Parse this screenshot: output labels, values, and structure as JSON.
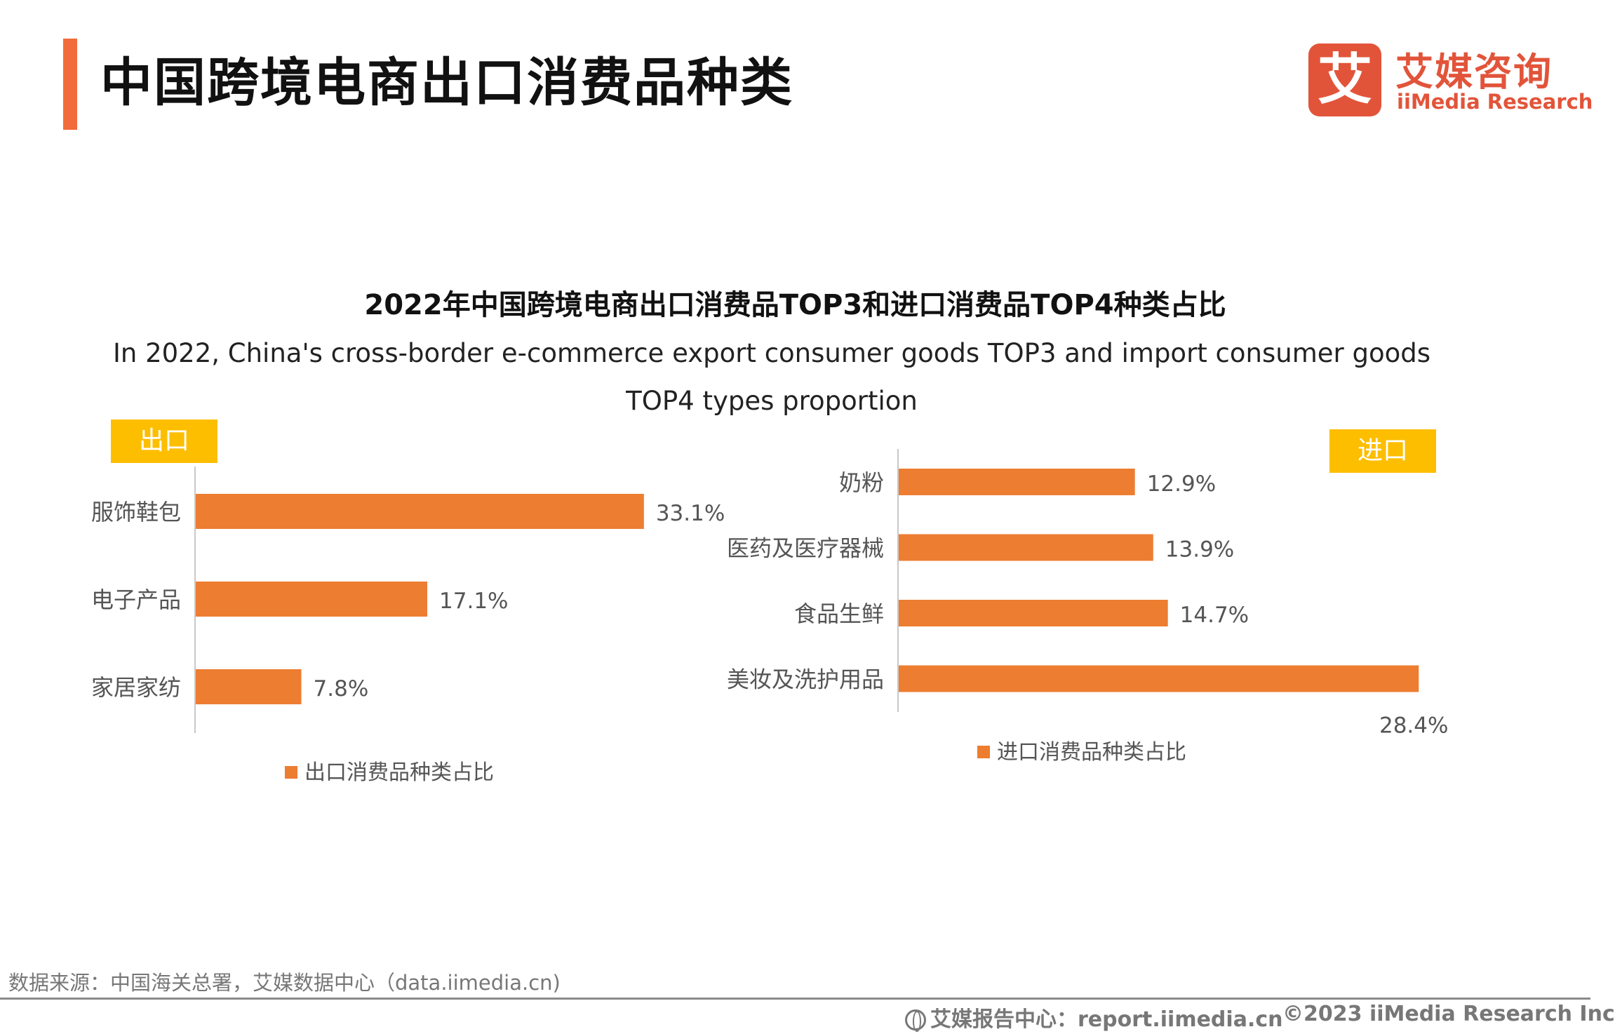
{
  "header": {
    "title": "中国跨境电商出口消费品种类",
    "logo_mark": "艾",
    "logo_cn": "艾媒咨询",
    "logo_en": "iiMedia Research"
  },
  "tags": {
    "export": "出口",
    "import": "进口"
  },
  "chart_data": [
    {
      "type": "bar",
      "orientation": "horizontal",
      "title": "2022年中国跨境电商出口消费品TOP3和进口消费品TOP4种类占比",
      "subtitle": "In 2022, China's cross-border e-commerce export consumer goods TOP3 and import consumer goods TOP4 types proportion",
      "categories": [
        "服饰鞋包",
        "电子产品",
        "家居家纺"
      ],
      "series": [
        {
          "name": "出口消费品种类占比",
          "values": [
            33.1,
            17.1,
            7.8
          ],
          "labels": [
            "33.1%",
            "17.1%",
            "7.8%"
          ]
        }
      ],
      "unit": "%",
      "color": "#ed7d31",
      "legend": "bottom",
      "grid": false
    },
    {
      "type": "bar",
      "orientation": "horizontal",
      "categories": [
        "奶粉",
        "医药及医疗器械",
        "食品生鲜",
        "美妆及洗护用品"
      ],
      "series": [
        {
          "name": "进口消费品种类占比",
          "values": [
            12.9,
            13.9,
            14.7,
            28.4
          ],
          "labels": [
            "12.9%",
            "13.9%",
            "14.7%",
            "28.4%"
          ]
        }
      ],
      "unit": "%",
      "color": "#ed7d31",
      "legend": "bottom",
      "grid": false
    }
  ],
  "footer": {
    "source": "数据来源：中国海关总署，艾媒数据中心（data.iimedia.cn)",
    "report_center": "艾媒报告中心：report.iimedia.cn",
    "copyright": "©2023  iiMedia Research  Inc"
  }
}
